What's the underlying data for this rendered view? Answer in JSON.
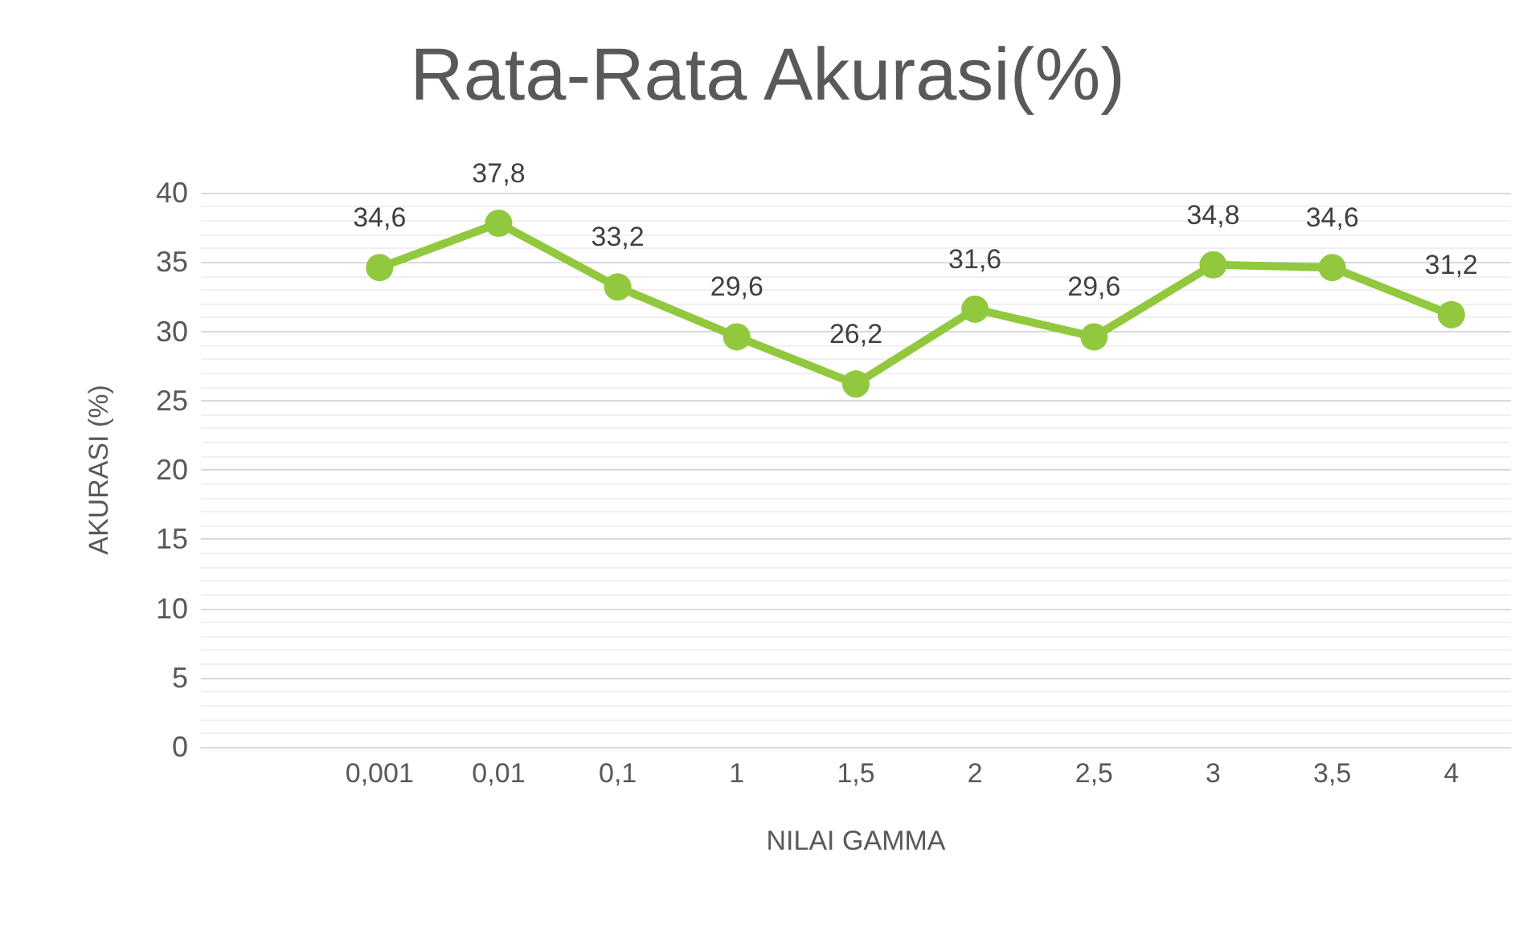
{
  "chart_data": {
    "type": "line",
    "title": "Rata-Rata Akurasi(%)",
    "xlabel": "NILAI GAMMA",
    "ylabel": "AKURASI (%)",
    "categories": [
      null,
      "0,001",
      "0,01",
      "0,1",
      "1",
      "1,5",
      "2",
      "2,5",
      "3",
      "3,5",
      "4"
    ],
    "series": [
      {
        "color": "#92c83e",
        "values": [
          null,
          34.6,
          37.8,
          33.2,
          29.6,
          26.2,
          31.6,
          29.6,
          34.8,
          34.6,
          31.2
        ],
        "value_labels": [
          null,
          "34,6",
          "37,8",
          "33,2",
          "29,6",
          "26,2",
          "31,6",
          "29,6",
          "34,8",
          "34,6",
          "31,2"
        ]
      }
    ],
    "ylim": [
      0,
      40
    ],
    "yticks": [
      0,
      5,
      10,
      15,
      20,
      25,
      30,
      35,
      40
    ],
    "grid": "y",
    "marker": "circle",
    "line_style": "solid"
  }
}
